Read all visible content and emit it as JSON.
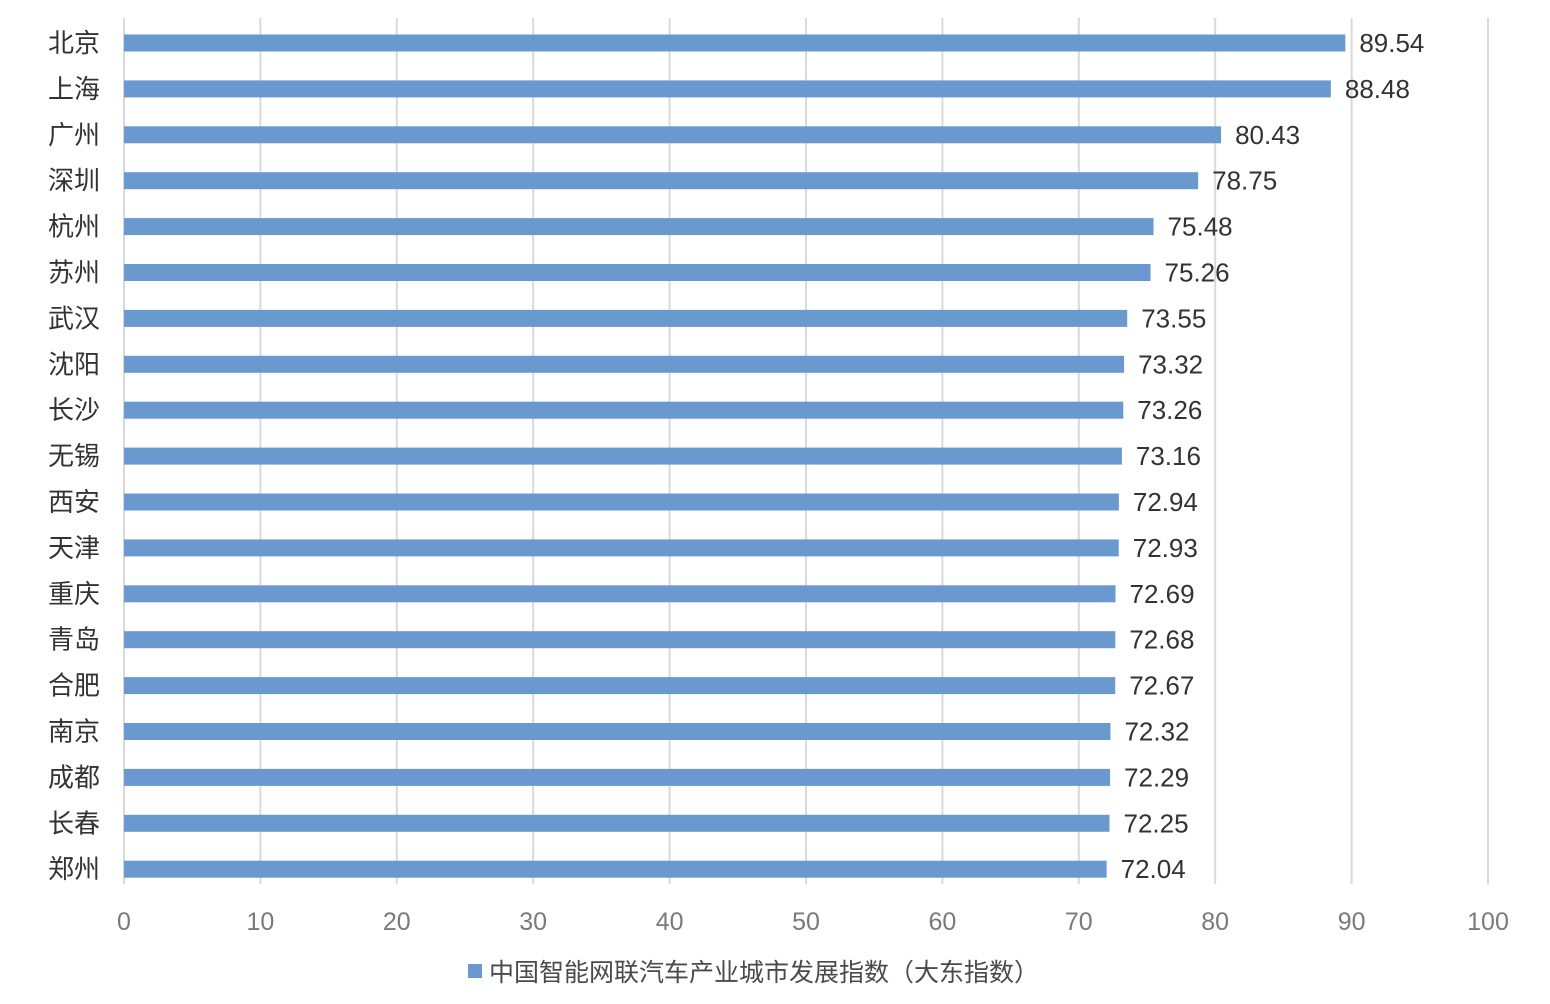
{
  "chart_data": {
    "type": "bar",
    "orientation": "horizontal",
    "categories": [
      "北京",
      "上海",
      "广州",
      "深圳",
      "杭州",
      "苏州",
      "武汉",
      "沈阳",
      "长沙",
      "无锡",
      "西安",
      "天津",
      "重庆",
      "青岛",
      "合肥",
      "南京",
      "成都",
      "长春",
      "郑州"
    ],
    "series": [
      {
        "name": "中国智能网联汽车产业城市发展指数（大东指数）",
        "values": [
          89.54,
          88.48,
          80.43,
          78.75,
          75.48,
          75.26,
          73.55,
          73.32,
          73.26,
          73.16,
          72.94,
          72.93,
          72.69,
          72.68,
          72.67,
          72.32,
          72.29,
          72.25,
          72.04
        ],
        "data_labels": [
          "89.54",
          "88.48",
          "80.43",
          "78.75",
          "75.48",
          "75.26",
          "73.55",
          "73.32",
          "73.26",
          "73.16",
          "72.94",
          "72.93",
          "72.69",
          "72.68",
          "72.67",
          "72.32",
          "72.29",
          "72.25",
          "72.04"
        ],
        "color": "#6a99d0"
      }
    ],
    "xlim": [
      0,
      100
    ],
    "x_ticks": [
      0,
      10,
      20,
      30,
      40,
      50,
      60,
      70,
      80,
      90,
      100
    ],
    "x_tick_labels": [
      "0",
      "10",
      "20",
      "30",
      "40",
      "50",
      "60",
      "70",
      "80",
      "90",
      "100"
    ],
    "grid": true,
    "legend_position": "bottom",
    "colors": {
      "bar": "#6a99d0",
      "grid": "#d9d9d9",
      "category_text": "#333333",
      "value_text": "#333333",
      "tick_text": "#7a7a7a",
      "legend_text": "#4a4a4a"
    }
  }
}
